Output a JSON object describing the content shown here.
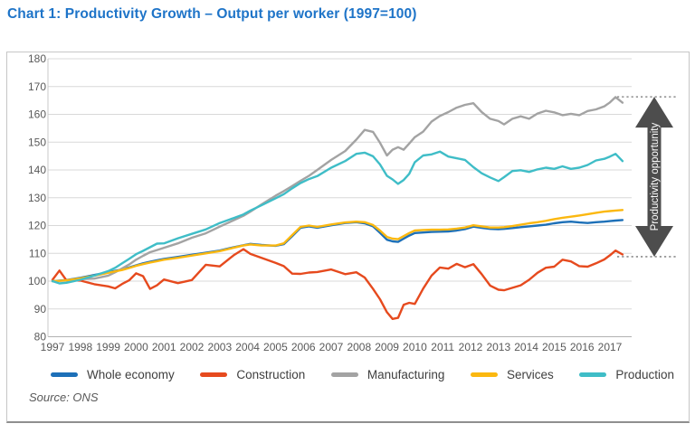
{
  "chart_data": {
    "type": "line",
    "title": "Chart 1: Productivity Growth – Output per worker (1997=100)",
    "source": "Source: ONS",
    "title_color": "#1e74c8",
    "ylim": [
      80,
      180
    ],
    "y_ticks": [
      80,
      90,
      100,
      110,
      120,
      130,
      140,
      150,
      160,
      170,
      180
    ],
    "x_ticks": [
      1997,
      1998,
      1999,
      2000,
      2001,
      2002,
      2003,
      2004,
      2005,
      2006,
      2007,
      2008,
      2009,
      2010,
      2011,
      2012,
      2013,
      2014,
      2015,
      2016,
      2017
    ],
    "grid": "horizontal",
    "legend_position": "bottom",
    "x": [
      1997,
      1997.25,
      1997.5,
      1998,
      1998.5,
      1999,
      1999.25,
      1999.5,
      1999.75,
      2000,
      2000.25,
      2000.5,
      2000.75,
      2001,
      2001.5,
      2002,
      2002.5,
      2003,
      2003.5,
      2003.85,
      2004.1,
      2004.5,
      2005,
      2005.3,
      2005.6,
      2005.9,
      2006.2,
      2006.5,
      2007,
      2007.5,
      2007.9,
      2008.2,
      2008.5,
      2008.75,
      2009,
      2009.2,
      2009.4,
      2009.6,
      2009.8,
      2010,
      2010.3,
      2010.6,
      2010.9,
      2011.2,
      2011.5,
      2011.8,
      2012.1,
      2012.4,
      2012.7,
      2013,
      2013.2,
      2013.5,
      2013.8,
      2014.1,
      2014.4,
      2014.7,
      2015,
      2015.3,
      2015.6,
      2015.9,
      2016.2,
      2016.5,
      2016.8,
      2017,
      2017.2,
      2017.45
    ],
    "series": [
      {
        "name": "Whole economy",
        "color": "#1d70b8",
        "values": [
          100,
          100.2,
          100.4,
          101.2,
          102.2,
          103.2,
          103.7,
          104.2,
          104.9,
          105.7,
          106.4,
          107,
          107.5,
          108,
          108.7,
          109.5,
          110.2,
          111,
          112.2,
          112.9,
          113.4,
          113,
          112.7,
          113.3,
          116.2,
          119.2,
          119.7,
          119.2,
          120.1,
          120.9,
          121.2,
          120.8,
          119.7,
          117.4,
          114.9,
          114.3,
          114.1,
          115.3,
          116.4,
          117.3,
          117.5,
          117.7,
          117.8,
          117.9,
          118.2,
          118.7,
          119.6,
          119.2,
          118.8,
          118.7,
          118.8,
          119.1,
          119.4,
          119.7,
          120,
          120.3,
          120.8,
          121.2,
          121.4,
          121.1,
          120.9,
          121.2,
          121.4,
          121.6,
          121.8,
          122
        ]
      },
      {
        "name": "Construction",
        "color": "#e64a1e",
        "values": [
          100.5,
          103.8,
          100.3,
          100.2,
          98.9,
          98.1,
          97.4,
          99,
          100.3,
          102.8,
          101.8,
          97.2,
          98.5,
          100.6,
          99.3,
          100.4,
          105.9,
          105.3,
          109.3,
          111.5,
          109.8,
          108.4,
          106.6,
          105.4,
          102.7,
          102.6,
          103.1,
          103.3,
          104.2,
          102.5,
          103.2,
          101.3,
          97.2,
          93.5,
          88.8,
          86.4,
          86.8,
          91.5,
          92.2,
          91.8,
          97.3,
          102,
          104.9,
          104.5,
          106.2,
          105,
          106.1,
          102.5,
          98.4,
          96.9,
          96.7,
          97.6,
          98.5,
          100.5,
          103,
          104.8,
          105.2,
          107.7,
          107.1,
          105.4,
          105.2,
          106.4,
          107.8,
          109.3,
          111,
          109.6
        ]
      },
      {
        "name": "Manufacturing",
        "color": "#a3a3a3",
        "values": [
          100,
          100.1,
          100.2,
          100.7,
          100.9,
          102,
          103.2,
          104.6,
          106,
          107.7,
          109.1,
          110.4,
          111.2,
          112,
          113.6,
          115.6,
          117.2,
          119.6,
          121.9,
          123.5,
          125,
          127.6,
          130.7,
          132.4,
          134.2,
          136.1,
          137.9,
          140,
          143.6,
          146.8,
          150.9,
          154.4,
          153.7,
          149.8,
          145.2,
          147.3,
          148.2,
          147.3,
          149.5,
          151.8,
          153.8,
          157.4,
          159.4,
          160.8,
          162.4,
          163.4,
          164,
          160.8,
          158.4,
          157.6,
          156.4,
          158.4,
          159.3,
          158.4,
          160.3,
          161.3,
          160.7,
          159.7,
          160.2,
          159.7,
          161.2,
          161.8,
          162.9,
          164.3,
          166.2,
          164.2
        ]
      },
      {
        "name": "Services",
        "color": "#fbb810",
        "values": [
          100,
          100.1,
          100.3,
          101,
          102,
          103,
          103.5,
          104,
          104.7,
          105.5,
          106.1,
          106.7,
          107.2,
          107.7,
          108.4,
          109.2,
          110,
          110.8,
          112,
          112.8,
          113.2,
          112.8,
          112.8,
          113.6,
          116.6,
          119.5,
          120,
          119.5,
          120.4,
          121.1,
          121.4,
          121.2,
          120.2,
          118.2,
          115.9,
          115.3,
          115.1,
          116.2,
          117.3,
          118.2,
          118.4,
          118.5,
          118.5,
          118.6,
          118.9,
          119.3,
          120.1,
          119.7,
          119.3,
          119.3,
          119.4,
          119.8,
          120.3,
          120.8,
          121.2,
          121.7,
          122.3,
          122.8,
          123.2,
          123.6,
          124.1,
          124.6,
          125,
          125.2,
          125.4,
          125.6
        ]
      },
      {
        "name": "Production",
        "color": "#3fbdc7",
        "values": [
          100,
          99.2,
          99.4,
          100.5,
          102,
          103.6,
          104.8,
          106.4,
          108,
          109.7,
          110.9,
          112.2,
          113.5,
          113.6,
          115.4,
          117,
          118.6,
          120.9,
          122.7,
          124,
          125.4,
          127.3,
          129.8,
          131.3,
          133.4,
          135.3,
          136.7,
          137.8,
          140.8,
          143.2,
          145.8,
          146.2,
          144.9,
          142,
          137.9,
          136.6,
          135,
          136.4,
          138.6,
          142.8,
          145.2,
          145.6,
          146.6,
          144.8,
          144.2,
          143.6,
          141,
          138.8,
          137.3,
          136,
          137.4,
          139.6,
          139.9,
          139.3,
          140.2,
          140.8,
          140.4,
          141.3,
          140.4,
          140.8,
          141.8,
          143.4,
          144,
          144.8,
          145.8,
          143.2
        ]
      }
    ],
    "annotation": {
      "label": "Productivity opportunity",
      "top_value": 166.3,
      "bottom_value": 108.8,
      "arrow_color": "#4d4d4d",
      "dash_color": "#8c8c8c"
    },
    "axis_text_color": "#595959",
    "gridline_color": "#d8d8d8"
  }
}
